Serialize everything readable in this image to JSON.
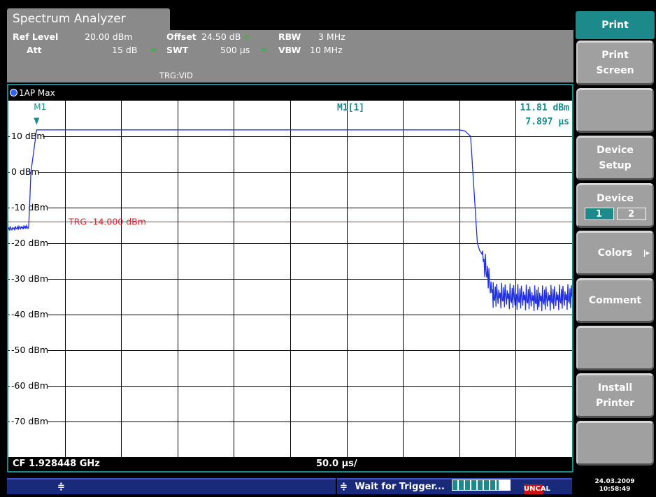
{
  "app": {
    "title": "Spectrum Analyzer"
  },
  "settings": {
    "ref_level_label": "Ref Level",
    "ref_level_value": "20.00 dBm",
    "offset_label": "Offset",
    "offset_value": "24.50 dB",
    "rbw_label": "RBW",
    "rbw_value": "3 MHz",
    "att_label": "Att",
    "att_value": "15 dB",
    "swt_label": "SWT",
    "swt_value": "500 µs",
    "vbw_label": "VBW",
    "vbw_value": "10 MHz",
    "trigger": "TRG:VID",
    "coupled_glyph": "="
  },
  "trace": {
    "label": "1AP Max",
    "color": "#2030e0"
  },
  "marker": {
    "name": "M1",
    "readout_name": "M1[1]",
    "readout_level": "11.81 dBm",
    "readout_time": "7.897 µs"
  },
  "trigger_line": {
    "label": "TRG -14.000 dBm",
    "level_dbm": -14,
    "color": "#e02020"
  },
  "plot": {
    "y_labels": [
      "10 dBm",
      "0 dBm",
      "-10 dBm",
      "-20 dBm",
      "-30 dBm",
      "-40 dBm",
      "-50 dBm",
      "-60 dBm",
      "-70 dBm"
    ],
    "center_freq": "CF 1.928448 GHz",
    "time_per_div": "50.0 µs/"
  },
  "chart_data": {
    "type": "line",
    "xlim": [
      0,
      500
    ],
    "ylim": [
      -80,
      20
    ],
    "grid": true,
    "series": [
      {
        "values_x": [
          0,
          15,
          18,
          20,
          25,
          30,
          60,
          120,
          180,
          240,
          300,
          360,
          400,
          405,
          410,
          412,
          416,
          418,
          420,
          430,
          450,
          470,
          500
        ],
        "values_y": [
          -16,
          -15.5,
          -15.5,
          0,
          11.8,
          11.8,
          11.8,
          11.8,
          11.8,
          11.8,
          11.8,
          11.8,
          11.8,
          11.5,
          10,
          0,
          -20,
          -22,
          -23,
          -34.5,
          -35,
          -35.5,
          -35
        ]
      }
    ]
  },
  "softkeys": {
    "header": "Print",
    "print_screen": [
      "Print",
      "Screen"
    ],
    "device_setup": [
      "Device",
      "Setup"
    ],
    "device": "Device",
    "device_options": [
      "1",
      "2"
    ],
    "colors": "Colors",
    "comment": "Comment",
    "install_printer": [
      "Install",
      "Printer"
    ]
  },
  "status": {
    "left_glyph": "≑",
    "message": "Wait for Trigger...",
    "progress_fraction": 0.8,
    "ovld_label": "UNCAL",
    "date": "24.03.2009",
    "time": "10:58:49"
  }
}
